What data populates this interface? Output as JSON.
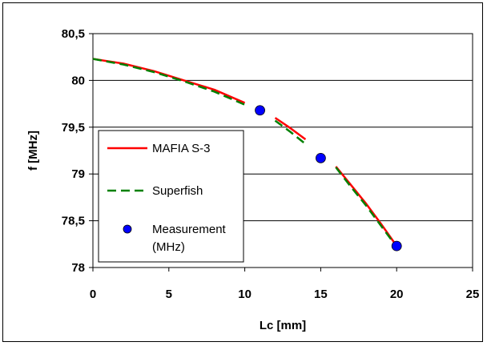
{
  "chart_data": {
    "type": "line",
    "xlabel": "Lc [mm]",
    "ylabel": "f [MHz]",
    "xlim": [
      0,
      25
    ],
    "ylim": [
      78,
      80.5
    ],
    "x_ticks": [
      "0",
      "5",
      "10",
      "15",
      "20",
      "25"
    ],
    "y_ticks": [
      "78",
      "78,5",
      "79",
      "79,5",
      "80",
      "80,5"
    ],
    "grid": "horizontal",
    "legend_position": "left-middle",
    "series": [
      {
        "name": "MAFIA S-3",
        "style": "solid",
        "color": "#ff0000",
        "segments": [
          {
            "x": [
              0,
              2,
              4,
              6,
              8,
              10
            ],
            "y": [
              80.23,
              80.18,
              80.1,
              80.0,
              79.9,
              79.76
            ]
          },
          {
            "x": [
              12,
              13,
              14
            ],
            "y": [
              79.6,
              79.49,
              79.37
            ]
          },
          {
            "x": [
              16,
              17,
              18,
              19,
              20
            ],
            "y": [
              79.08,
              78.88,
              78.68,
              78.46,
              78.23
            ]
          }
        ]
      },
      {
        "name": "Superfish",
        "style": "dashed",
        "color": "#008000",
        "segments": [
          {
            "x": [
              0,
              2,
              4,
              6,
              8,
              10
            ],
            "y": [
              80.23,
              80.17,
              80.09,
              79.99,
              79.88,
              79.74
            ]
          },
          {
            "x": [
              12,
              13,
              14
            ],
            "y": [
              79.57,
              79.45,
              79.32
            ]
          },
          {
            "x": [
              16,
              17,
              18,
              19,
              20
            ],
            "y": [
              79.07,
              78.86,
              78.66,
              78.44,
              78.22
            ]
          }
        ]
      },
      {
        "name": "Measurement (MHz)",
        "style": "marker",
        "color": "#0000ff",
        "x": [
          11,
          15,
          20
        ],
        "y": [
          79.68,
          79.17,
          78.23
        ]
      }
    ]
  },
  "legend": {
    "mafia": "MAFIA S-3",
    "superfish": "Superfish",
    "measurement_line1": "Measurement",
    "measurement_line2": "(MHz)"
  },
  "colors": {
    "mafia": "#ff0000",
    "superfish": "#008000",
    "measurement": "#0000ff"
  }
}
